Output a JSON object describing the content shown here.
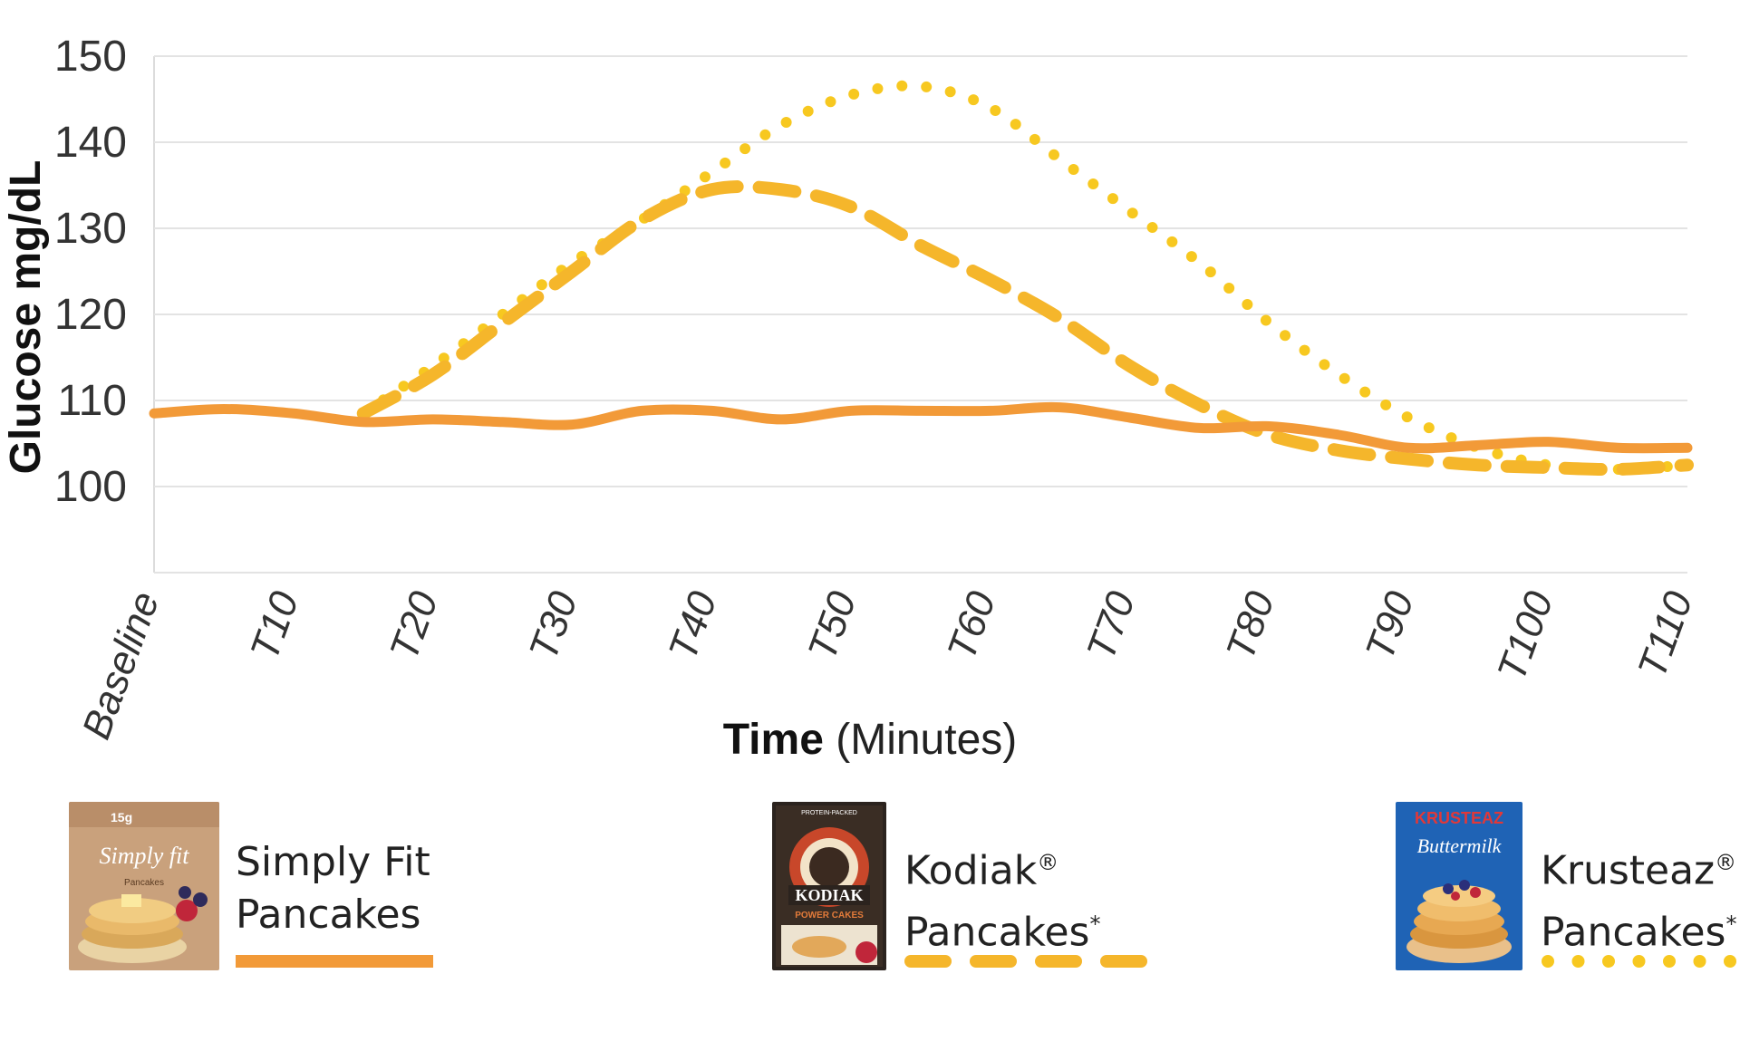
{
  "chart_data": {
    "type": "line",
    "xlabel_bold": "Time",
    "xlabel_rest": "(Minutes)",
    "ylabel": "Glucose mg/dL",
    "ylim": [
      90,
      150
    ],
    "yticks": [
      100,
      110,
      120,
      130,
      140,
      150
    ],
    "categories": [
      "Baseline",
      "T10",
      "T20",
      "T30",
      "T40",
      "T50",
      "T60",
      "T70",
      "T80",
      "T90",
      "T100",
      "T110"
    ],
    "grid": true,
    "legend_placement": "bottom",
    "series": [
      {
        "name": "Simply Fit Pancakes",
        "style": "solid",
        "color": "#f29a38",
        "x": [
          0,
          5,
          10,
          15,
          20,
          25,
          30,
          35,
          40,
          45,
          50,
          55,
          60,
          65,
          70,
          75,
          80,
          85,
          90,
          95,
          100,
          105,
          110
        ],
        "values": [
          108.5,
          109,
          108.5,
          107.5,
          107.8,
          107.5,
          107.2,
          108.8,
          108.8,
          107.8,
          108.8,
          108.8,
          108.8,
          109.2,
          108,
          106.8,
          107,
          106,
          104.5,
          104.8,
          105.2,
          104.5,
          104.5
        ]
      },
      {
        "name": "Kodiak Pancakes",
        "style": "dashed",
        "color": "#f5b62b",
        "x": [
          15,
          20,
          25,
          30,
          35,
          40,
          45,
          50,
          55,
          60,
          65,
          70,
          75,
          80,
          85,
          90,
          95,
          100,
          105,
          110
        ],
        "values": [
          108.5,
          113,
          119,
          125,
          131,
          134.5,
          134.5,
          132.5,
          128,
          124,
          119.5,
          114,
          109.5,
          106,
          104.2,
          103.2,
          102.5,
          102.2,
          102,
          102.5
        ]
      },
      {
        "name": "Krusteaz Pancakes",
        "style": "dotted",
        "color": "#f7c820",
        "x": [
          15,
          20,
          25,
          30,
          35,
          40,
          45,
          50,
          55,
          60,
          65,
          70,
          75,
          80,
          85,
          90,
          95,
          100,
          105,
          110
        ],
        "values": [
          108.5,
          114,
          120,
          126,
          131,
          136.5,
          142,
          145.5,
          146.5,
          144,
          138,
          132,
          126,
          119,
          113,
          108,
          104.5,
          102.5,
          102,
          102.5
        ]
      }
    ]
  },
  "legend": [
    {
      "line1": "Simply Fit",
      "line2": "Pancakes",
      "mark": "",
      "star": "",
      "package": "simply-fit-box-icon"
    },
    {
      "line1": "Kodiak",
      "line2": "Pancakes",
      "mark": "®",
      "star": "*",
      "package": "kodiak-box-icon"
    },
    {
      "line1": "Krusteaz",
      "line2": "Pancakes",
      "mark": "®",
      "star": "*",
      "package": "krusteaz-box-icon"
    }
  ],
  "packages": {
    "simply_fit": {
      "brand": "Simply fit",
      "sub": "Pancakes",
      "top": "15g"
    },
    "kodiak": {
      "brand": "KODIAK",
      "sub": "POWER CAKES",
      "top": "PROTEIN-PACKED"
    },
    "krusteaz": {
      "brand": "KRUSTEAZ",
      "sub": "Buttermilk"
    }
  }
}
